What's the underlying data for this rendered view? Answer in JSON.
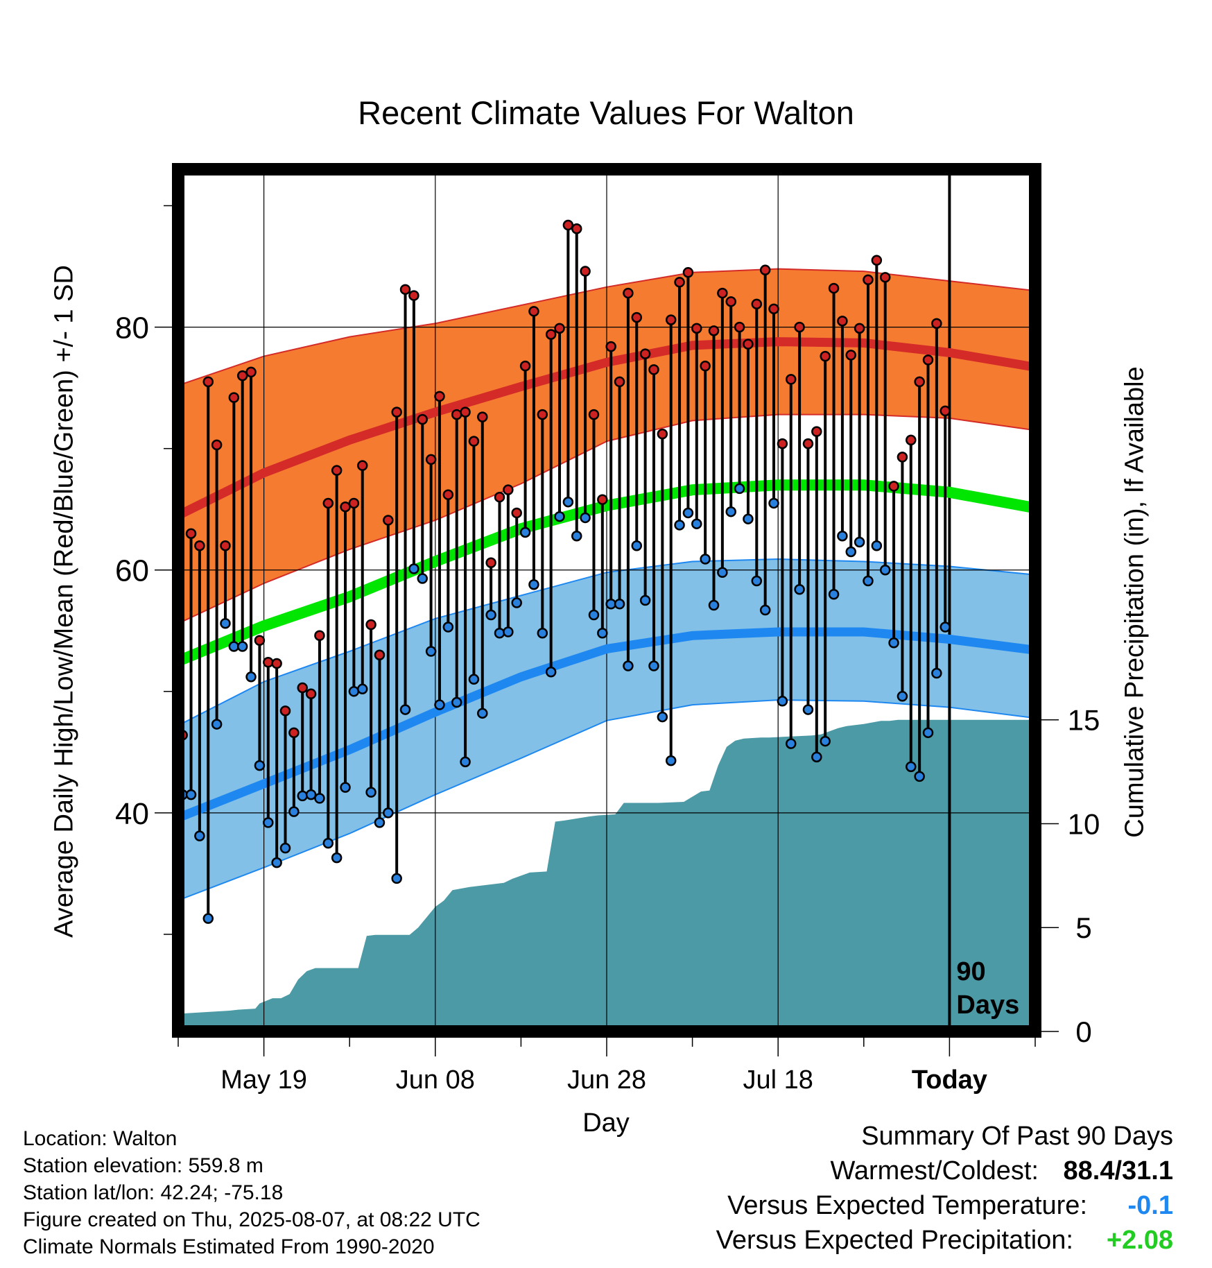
{
  "title": "Recent Climate Values For Walton",
  "y_label_left": "Average Daily High/Low/Mean (Red/Blue/Green) +/- 1 SD",
  "y_label_right": "Cumulative Precipitation (in), If Available",
  "x_label": "Day",
  "meta": {
    "location": "Location: Walton",
    "elevation": "Station elevation: 559.8 m",
    "latlon": "Station lat/lon: 42.24; -75.18",
    "created": "Figure created on Thu, 2025-08-07, at 08:22 UTC",
    "normals": "Climate Normals Estimated From 1990-2020"
  },
  "summary": {
    "heading": "Summary Of Past 90 Days",
    "warmest_coldest_label": "Warmest/Coldest:",
    "warmest_coldest_value": "88.4/31.1",
    "temp_label": "Versus Expected Temperature:",
    "temp_value": "-0.1",
    "precip_label": "Versus Expected Precipitation:",
    "precip_value": "+2.08"
  },
  "colors": {
    "high_band": "#f47b30",
    "high_mean": "#d42a28",
    "low_band": "#82c0e8",
    "low_mean": "#1e88f0",
    "mean": "#00e600",
    "precip": "#4b9aa5",
    "high_dot": "#cc2222",
    "low_dot": "#2a80dd",
    "temp_positive": "#1e88f0",
    "precip_positive": "#22cc22"
  },
  "chart_data": {
    "type": "line",
    "x_axis": {
      "tick_labels": [
        "May 19",
        "Jun 08",
        "Jun 28",
        "Jul 18",
        "Today"
      ],
      "tick_days": [
        10,
        30,
        50,
        70,
        90
      ],
      "today_label": [
        "90",
        "Days"
      ],
      "range": [
        0,
        100
      ]
    },
    "y_axis_left": {
      "ticks": [
        40,
        60,
        80
      ],
      "range": [
        22,
        93
      ]
    },
    "y_axis_right": {
      "ticks": [
        0,
        5,
        10,
        15
      ],
      "range": [
        0,
        41.5
      ]
    },
    "normals": {
      "days": [
        0,
        10,
        20,
        30,
        40,
        50,
        60,
        70,
        80,
        90,
        100
      ],
      "high_mean": [
        64.5,
        68.0,
        70.7,
        73.0,
        75.1,
        77.1,
        78.5,
        78.8,
        78.7,
        77.9,
        76.7
      ],
      "high_upper": [
        75.2,
        77.6,
        79.2,
        80.3,
        81.8,
        83.3,
        84.5,
        84.8,
        84.6,
        83.8,
        83.0
      ],
      "high_lower": [
        55.6,
        58.9,
        61.7,
        64.1,
        67.1,
        70.6,
        72.3,
        72.8,
        72.8,
        72.5,
        71.5
      ],
      "mean": [
        52.5,
        55.4,
        57.8,
        60.7,
        63.4,
        65.3,
        66.6,
        67.0,
        67.0,
        66.4,
        65.1
      ],
      "low_mean": [
        39.6,
        42.4,
        45.2,
        48.3,
        51.2,
        53.5,
        54.6,
        54.9,
        54.9,
        54.3,
        53.4
      ],
      "low_upper": [
        47.2,
        50.8,
        53.3,
        56.0,
        57.9,
        59.8,
        60.7,
        60.9,
        60.7,
        60.3,
        59.6
      ],
      "low_lower": [
        32.8,
        35.5,
        38.3,
        41.5,
        44.5,
        47.6,
        48.9,
        49.3,
        49.2,
        48.7,
        47.8
      ]
    },
    "series": [
      {
        "name": "High",
        "values": [
          46.4,
          63.0,
          62.0,
          75.5,
          70.3,
          62.0,
          74.2,
          76.0,
          76.3,
          54.2,
          52.4,
          52.3,
          48.4,
          46.6,
          50.3,
          49.8,
          54.6,
          65.5,
          68.2,
          65.2,
          65.5,
          68.6,
          55.5,
          53.0,
          64.1,
          73.0,
          83.1,
          82.6,
          72.4,
          69.1,
          74.3,
          66.2,
          72.8,
          73.0,
          70.6,
          72.6,
          60.6,
          66.0,
          66.6,
          64.7,
          76.8,
          81.3,
          72.8,
          79.4,
          79.9,
          88.4,
          88.1,
          84.6,
          72.8,
          65.8,
          78.4,
          75.5,
          82.8,
          80.8,
          77.8,
          76.5,
          71.2,
          80.6,
          83.7,
          84.5,
          79.9,
          76.8,
          79.7,
          82.8,
          82.1,
          80.0,
          78.6,
          81.9,
          84.7,
          81.5,
          70.4,
          75.7,
          80.0,
          70.4,
          71.4,
          77.6,
          83.2,
          80.5,
          77.7,
          79.9,
          83.9,
          85.5,
          84.1,
          66.9,
          69.3,
          70.7,
          75.5,
          77.3,
          80.3,
          73.1
        ],
        "color": "#cc2222"
      },
      {
        "name": "Low",
        "values": [
          41.5,
          41.5,
          38.1,
          31.3,
          47.3,
          55.6,
          53.7,
          53.7,
          51.2,
          43.9,
          39.2,
          35.9,
          37.1,
          40.1,
          41.4,
          41.5,
          41.2,
          37.5,
          36.3,
          42.1,
          50.0,
          50.2,
          41.7,
          39.2,
          40.0,
          34.6,
          48.5,
          60.1,
          59.3,
          53.3,
          48.9,
          55.3,
          49.1,
          44.2,
          51.0,
          48.2,
          56.3,
          54.8,
          54.9,
          57.3,
          63.1,
          58.8,
          54.8,
          51.6,
          64.4,
          65.6,
          62.8,
          64.3,
          56.3,
          54.8,
          57.2,
          57.2,
          52.1,
          62.0,
          57.5,
          52.1,
          47.9,
          44.3,
          63.7,
          64.7,
          63.8,
          60.9,
          57.1,
          59.8,
          64.8,
          66.7,
          64.2,
          59.1,
          56.7,
          65.5,
          49.2,
          45.7,
          58.4,
          48.5,
          44.6,
          45.9,
          58.0,
          62.8,
          61.5,
          62.3,
          59.1,
          62.0,
          60.0,
          54.0,
          49.6,
          43.8,
          43.0,
          46.6,
          51.5,
          55.3
        ],
        "color": "#2a80dd"
      },
      {
        "name": "Cumulative Precipitation",
        "x": [
          0,
          6,
          7,
          9,
          9.5,
          11,
          12,
          13,
          14,
          15,
          16,
          21,
          22,
          23,
          27,
          28,
          30,
          31,
          32,
          34,
          38,
          39,
          41,
          43,
          44,
          45,
          48,
          49,
          51,
          52,
          56,
          59,
          61,
          62,
          63,
          64,
          65,
          66,
          68,
          69,
          74,
          75,
          77,
          78,
          80,
          82,
          83,
          84,
          85,
          86,
          99.5
        ],
        "values": [
          0.85,
          1.0,
          1.05,
          1.1,
          1.35,
          1.6,
          1.6,
          1.8,
          2.5,
          2.9,
          3.05,
          3.05,
          4.6,
          4.65,
          4.65,
          5.0,
          6.0,
          6.3,
          6.8,
          6.95,
          7.15,
          7.35,
          7.65,
          7.7,
          10.1,
          10.15,
          10.35,
          10.4,
          10.45,
          11.0,
          11.0,
          11.05,
          11.55,
          11.6,
          12.8,
          13.7,
          14.0,
          14.1,
          14.15,
          14.15,
          14.25,
          14.3,
          14.6,
          14.7,
          14.8,
          14.95,
          14.95,
          15.0,
          15.0,
          15.0,
          15.0
        ],
        "color": "#4b9aa5"
      }
    ]
  }
}
